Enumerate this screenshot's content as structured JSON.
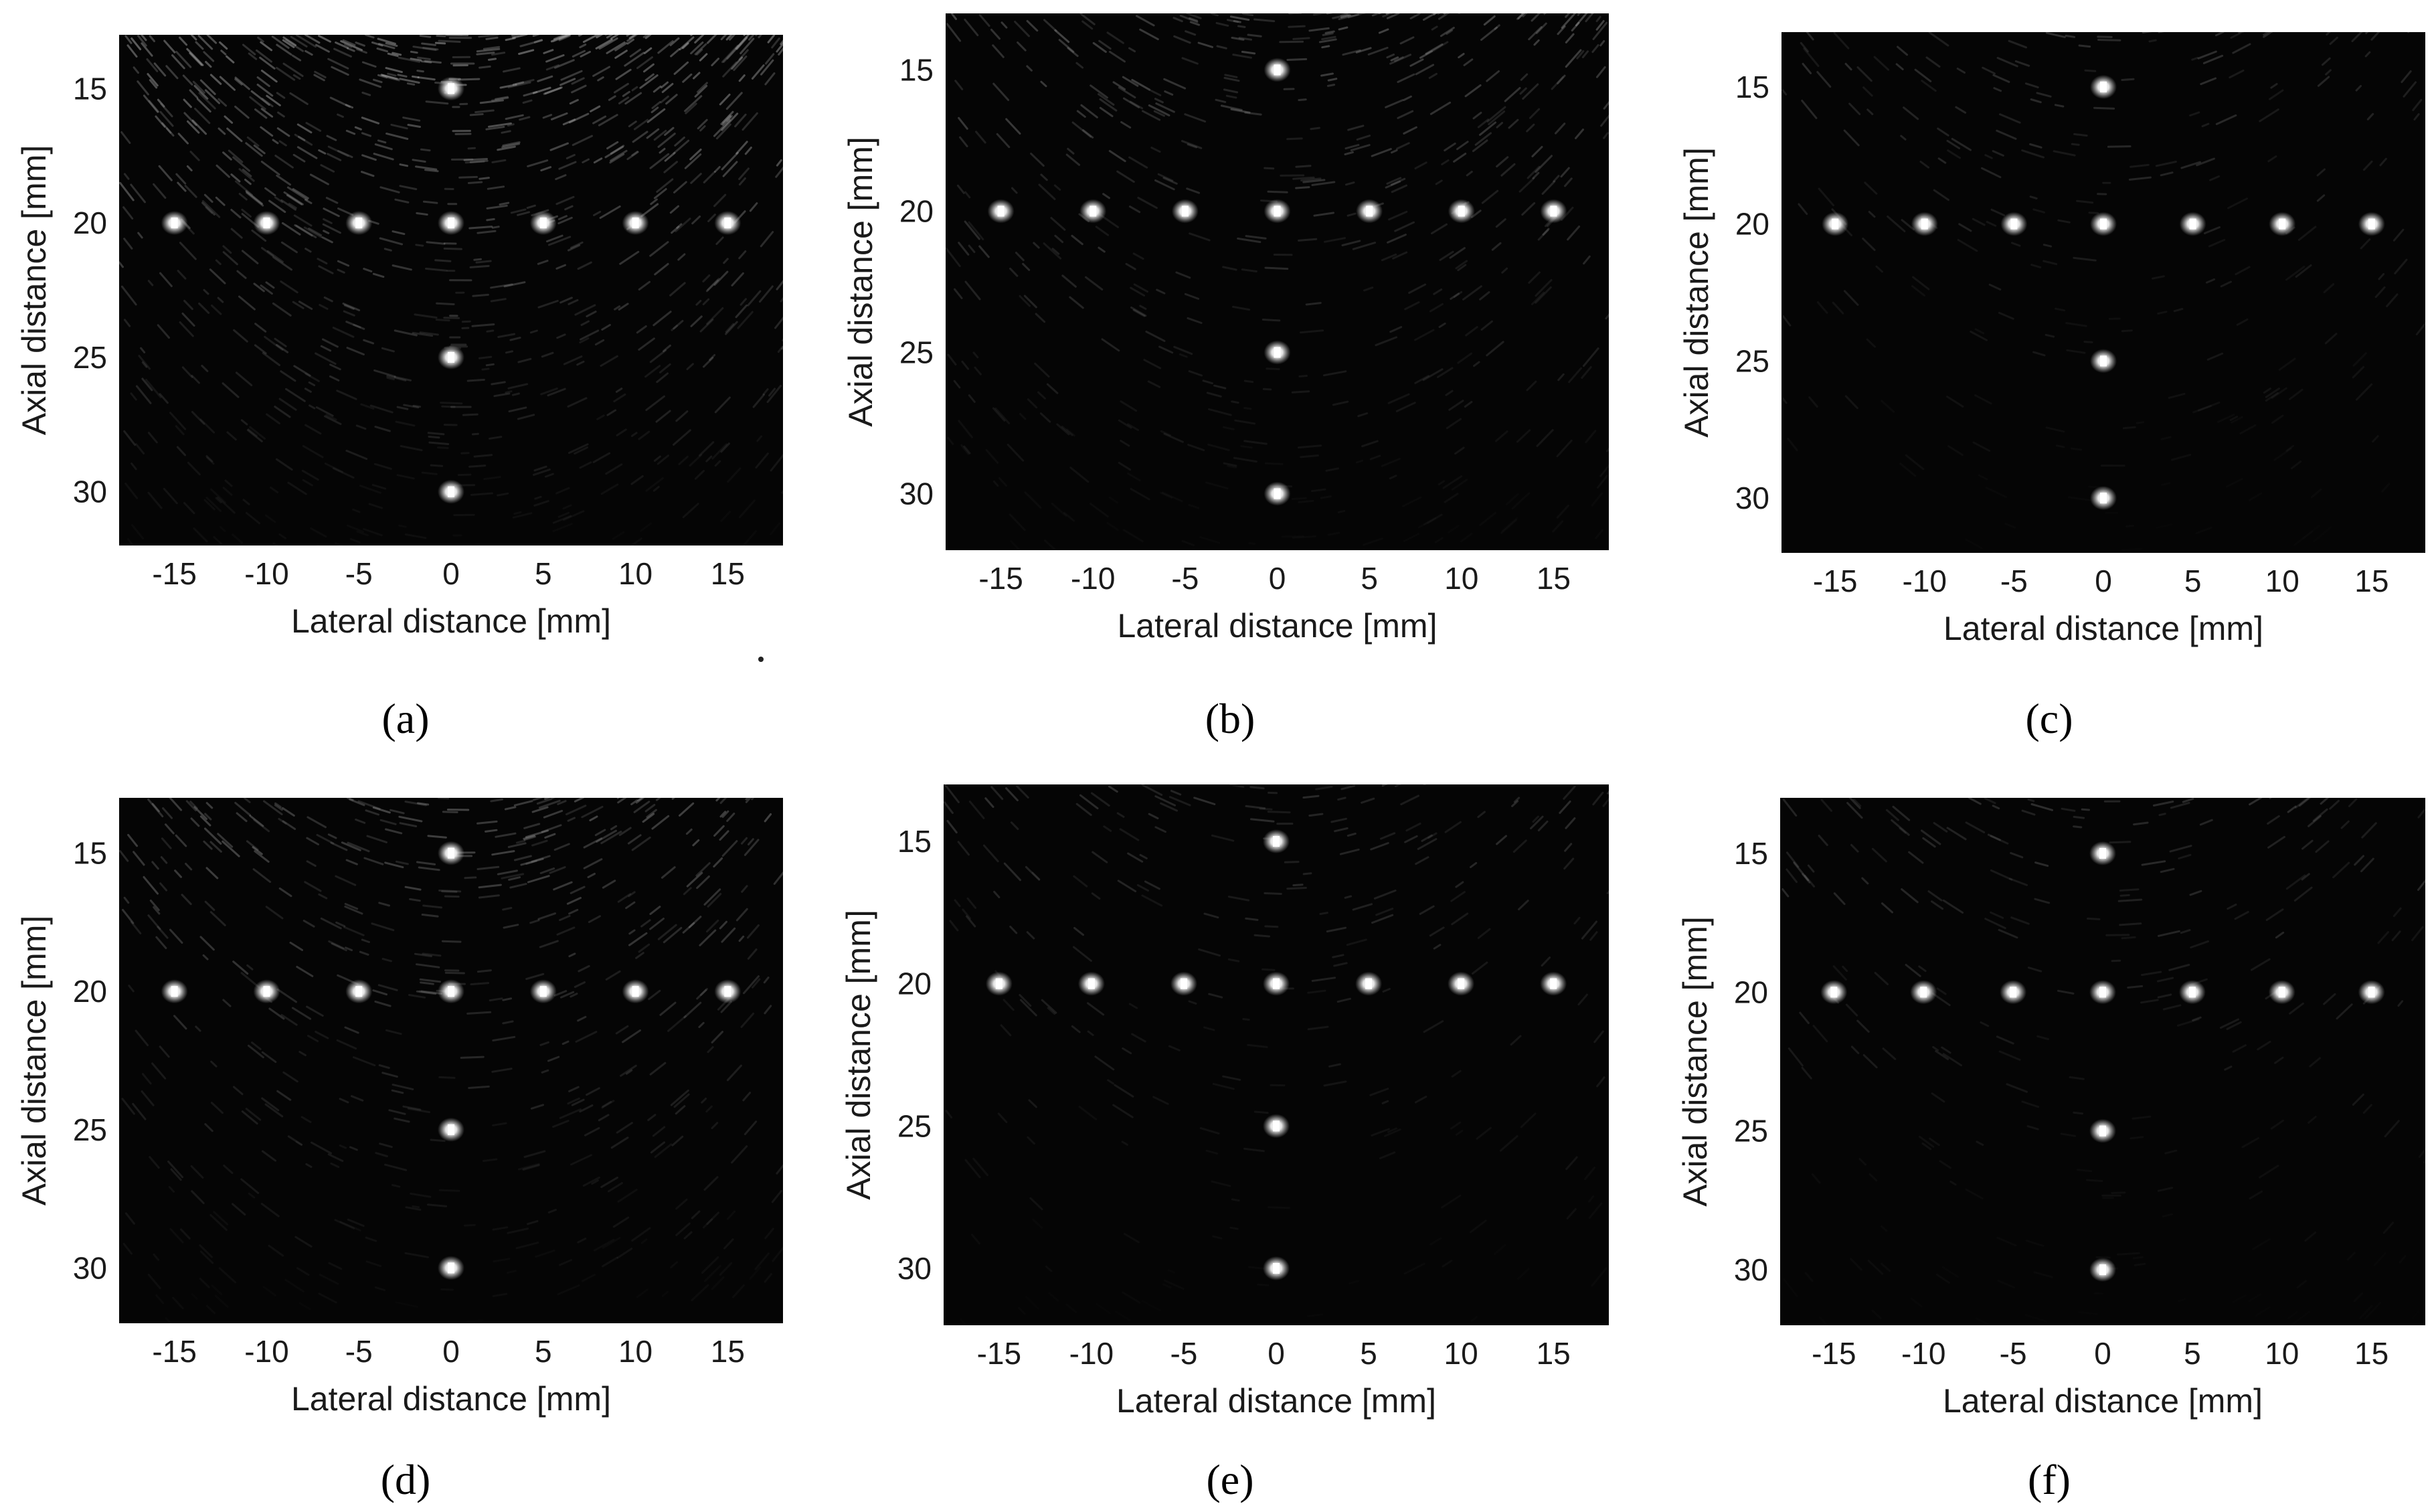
{
  "figure": {
    "panel_labels": [
      "(a)",
      "(b)",
      "(c)",
      "(d)",
      "(e)",
      "(f)"
    ]
  },
  "chart_data": [
    {
      "type": "heatmap",
      "panel": "(a)",
      "xlabel": "Lateral distance [mm]",
      "ylabel": "Axial distance [mm]",
      "xlim": [
        -18,
        18
      ],
      "ylim": [
        13,
        32
      ],
      "x_reversed": false,
      "y_reversed": true,
      "xticks": [
        -15,
        -10,
        -5,
        0,
        5,
        10,
        15
      ],
      "yticks": [
        15,
        20,
        25,
        30
      ],
      "point_targets": [
        {
          "x": 0,
          "y": 15
        },
        {
          "x": -15,
          "y": 20
        },
        {
          "x": -10,
          "y": 20
        },
        {
          "x": -5,
          "y": 20
        },
        {
          "x": 0,
          "y": 20
        },
        {
          "x": 5,
          "y": 20
        },
        {
          "x": 10,
          "y": 20
        },
        {
          "x": 15,
          "y": 20
        },
        {
          "x": 0,
          "y": 25
        },
        {
          "x": 0,
          "y": 30
        }
      ],
      "background_speckle": "high",
      "colormap": "gray"
    },
    {
      "type": "heatmap",
      "panel": "(b)",
      "xlabel": "Lateral distance [mm]",
      "ylabel": "Axial distance [mm]",
      "xlim": [
        -18,
        18
      ],
      "ylim": [
        13,
        32
      ],
      "y_reversed": true,
      "xticks": [
        -15,
        -10,
        -5,
        0,
        5,
        10,
        15
      ],
      "yticks": [
        15,
        20,
        25,
        30
      ],
      "point_targets": [
        {
          "x": 0,
          "y": 15
        },
        {
          "x": -15,
          "y": 20
        },
        {
          "x": -10,
          "y": 20
        },
        {
          "x": -5,
          "y": 20
        },
        {
          "x": 0,
          "y": 20
        },
        {
          "x": 5,
          "y": 20
        },
        {
          "x": 10,
          "y": 20
        },
        {
          "x": 15,
          "y": 20
        },
        {
          "x": 0,
          "y": 25
        },
        {
          "x": 0,
          "y": 30
        }
      ],
      "background_speckle": "medium",
      "colormap": "gray"
    },
    {
      "type": "heatmap",
      "panel": "(c)",
      "xlabel": "Lateral distance [mm]",
      "ylabel": "Axial distance [mm]",
      "xlim": [
        -18,
        18
      ],
      "ylim": [
        13,
        32
      ],
      "y_reversed": true,
      "xticks": [
        -15,
        -10,
        -5,
        0,
        5,
        10,
        15
      ],
      "yticks": [
        15,
        20,
        25,
        30
      ],
      "point_targets": [
        {
          "x": 0,
          "y": 15
        },
        {
          "x": -15,
          "y": 20
        },
        {
          "x": -10,
          "y": 20
        },
        {
          "x": -5,
          "y": 20
        },
        {
          "x": 0,
          "y": 20
        },
        {
          "x": 5,
          "y": 20
        },
        {
          "x": 10,
          "y": 20
        },
        {
          "x": 15,
          "y": 20
        },
        {
          "x": 0,
          "y": 25
        },
        {
          "x": 0,
          "y": 30
        }
      ],
      "background_speckle": "low",
      "colormap": "gray"
    },
    {
      "type": "heatmap",
      "panel": "(d)",
      "xlabel": "Lateral distance [mm]",
      "ylabel": "Axial distance [mm]",
      "xlim": [
        -18,
        18
      ],
      "ylim": [
        13,
        32
      ],
      "y_reversed": true,
      "xticks": [
        -15,
        -10,
        -5,
        0,
        5,
        10,
        15
      ],
      "yticks": [
        15,
        20,
        25,
        30
      ],
      "point_targets": [
        {
          "x": 0,
          "y": 15
        },
        {
          "x": -15,
          "y": 20
        },
        {
          "x": -10,
          "y": 20
        },
        {
          "x": -5,
          "y": 20
        },
        {
          "x": 0,
          "y": 20
        },
        {
          "x": 5,
          "y": 20
        },
        {
          "x": 10,
          "y": 20
        },
        {
          "x": 15,
          "y": 20
        },
        {
          "x": 0,
          "y": 25
        },
        {
          "x": 0,
          "y": 30
        }
      ],
      "background_speckle": "medium",
      "colormap": "gray"
    },
    {
      "type": "heatmap",
      "panel": "(e)",
      "xlabel": "Lateral distance [mm]",
      "ylabel": "Axial distance [mm]",
      "xlim": [
        -18,
        18
      ],
      "ylim": [
        13,
        32
      ],
      "y_reversed": true,
      "xticks": [
        -15,
        -10,
        -5,
        0,
        5,
        10,
        15
      ],
      "yticks": [
        15,
        20,
        25,
        30
      ],
      "point_targets": [
        {
          "x": 0,
          "y": 15
        },
        {
          "x": -15,
          "y": 20
        },
        {
          "x": -10,
          "y": 20
        },
        {
          "x": -5,
          "y": 20
        },
        {
          "x": 0,
          "y": 20
        },
        {
          "x": 5,
          "y": 20
        },
        {
          "x": 10,
          "y": 20
        },
        {
          "x": 15,
          "y": 20
        },
        {
          "x": 0,
          "y": 25
        },
        {
          "x": 0,
          "y": 30
        }
      ],
      "background_speckle": "low",
      "colormap": "gray"
    },
    {
      "type": "heatmap",
      "panel": "(f)",
      "xlabel": "Lateral distance [mm]",
      "ylabel": "Axial distance [mm]",
      "xlim": [
        -18,
        18
      ],
      "ylim": [
        13,
        32
      ],
      "y_reversed": true,
      "xticks": [
        -15,
        -10,
        -5,
        0,
        5,
        10,
        15
      ],
      "yticks": [
        15,
        20,
        25,
        30
      ],
      "point_targets": [
        {
          "x": 0,
          "y": 15
        },
        {
          "x": -15,
          "y": 20
        },
        {
          "x": -10,
          "y": 20
        },
        {
          "x": -5,
          "y": 20
        },
        {
          "x": 0,
          "y": 20
        },
        {
          "x": 5,
          "y": 20
        },
        {
          "x": 10,
          "y": 20
        },
        {
          "x": 15,
          "y": 20
        },
        {
          "x": 0,
          "y": 25
        },
        {
          "x": 0,
          "y": 30
        }
      ],
      "background_speckle": "low",
      "colormap": "gray"
    }
  ]
}
